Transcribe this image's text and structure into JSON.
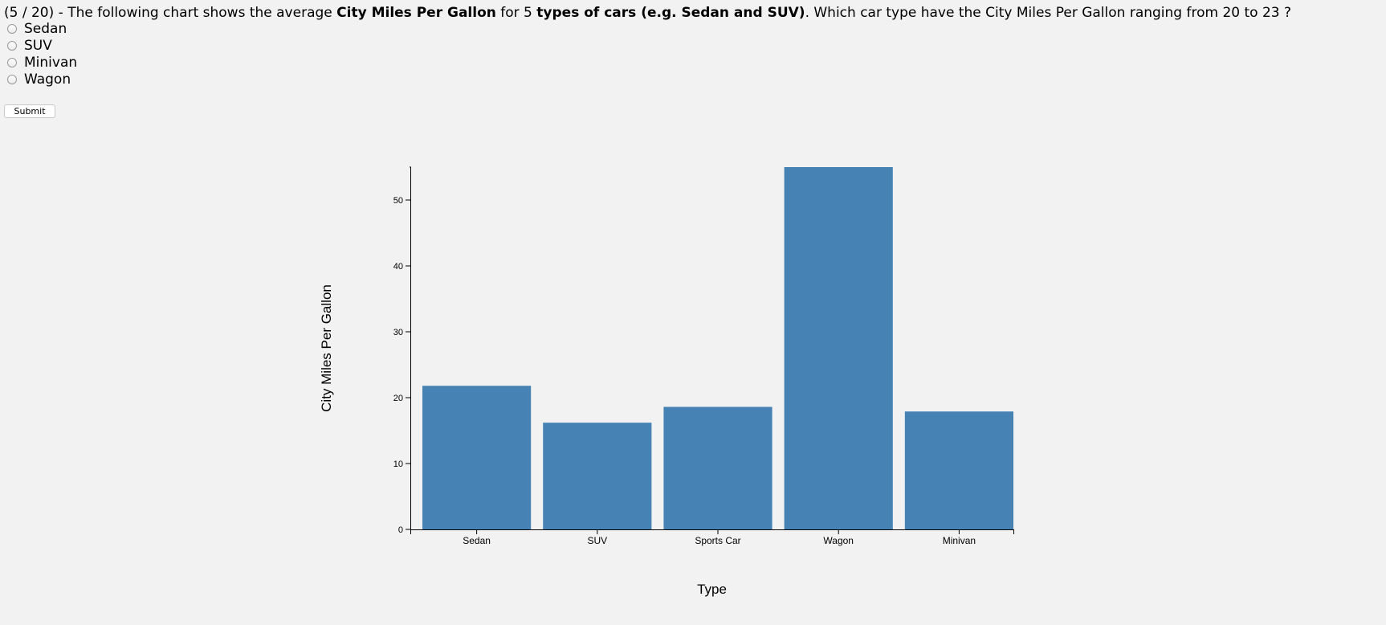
{
  "question": {
    "prefix": "(5 / 20) - The following chart shows the average ",
    "bold1": "City Miles Per Gallon",
    "mid1": " for 5 ",
    "bold2": "types of cars (e.g. Sedan and SUV)",
    "suffix": ". Which car type have the City Miles Per Gallon ranging from 20 to 23 ?"
  },
  "options": [
    {
      "label": "Sedan",
      "selected": false
    },
    {
      "label": "SUV",
      "selected": false
    },
    {
      "label": "Minivan",
      "selected": false
    },
    {
      "label": "Wagon",
      "selected": false
    }
  ],
  "submit_label": "Submit",
  "chart_data": {
    "type": "bar",
    "categories": [
      "Sedan",
      "SUV",
      "Sports Car",
      "Wagon",
      "Minivan"
    ],
    "values": [
      21.8,
      16.2,
      18.6,
      55,
      17.9
    ],
    "xlabel": "Type",
    "ylabel": "City Miles Per Gallon",
    "ylim": [
      0,
      55
    ],
    "yticks": [
      0,
      10,
      20,
      30,
      40,
      50
    ],
    "bar_color": "#4682b4",
    "grid": false,
    "legend": "none"
  }
}
